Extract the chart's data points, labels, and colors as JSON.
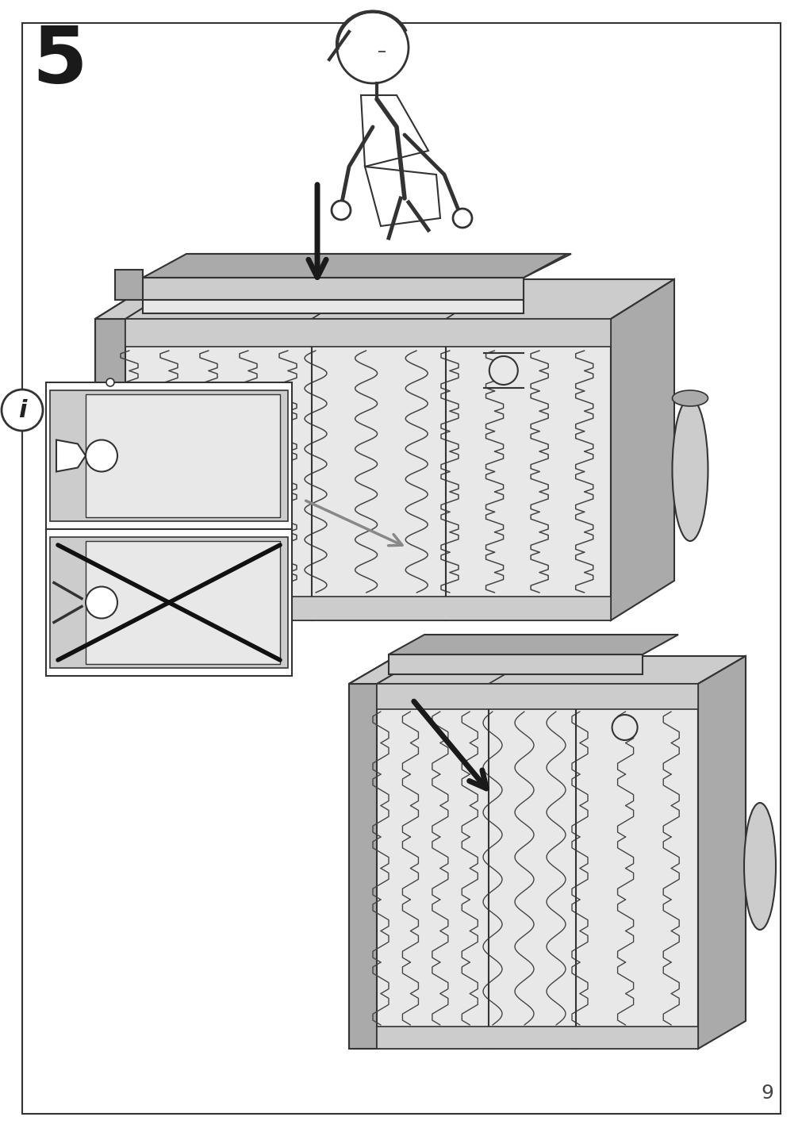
{
  "page_number": "9",
  "step_number": "5",
  "bg": "#ffffff",
  "border": "#333333",
  "figw": 10.12,
  "figh": 14.32,
  "gray_light": "#e8e8e8",
  "gray_mid": "#cccccc",
  "gray_dark": "#aaaaaa",
  "gray_darkest": "#888888",
  "wood": "#b8a888",
  "wood_dark": "#9a8a70",
  "spring_color": "#333333",
  "black": "#1a1a1a"
}
